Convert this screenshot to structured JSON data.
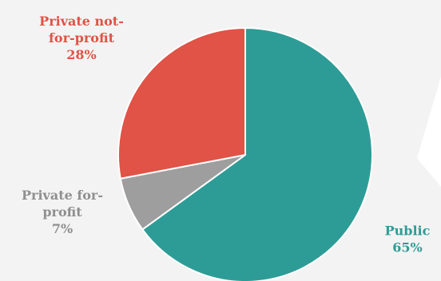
{
  "chart_data": {
    "type": "pie",
    "slices": [
      {
        "label_lines": [
          "Public",
          "65%"
        ],
        "category": "Public",
        "value": 65,
        "color": "#2e9c96"
      },
      {
        "label_lines": [
          "Private for-",
          "profit",
          "7%"
        ],
        "category": "Private for-profit",
        "value": 7,
        "color": "#9e9e9e"
      },
      {
        "label_lines": [
          "Private not-",
          "for-profit",
          "28%"
        ],
        "category": "Private not-for-profit",
        "value": 28,
        "color": "#e05346"
      }
    ],
    "start_angle_deg": 0,
    "direction": "clockwise"
  },
  "colors": {
    "background": "#f3f3f3",
    "slice_border": "#ffffff"
  }
}
